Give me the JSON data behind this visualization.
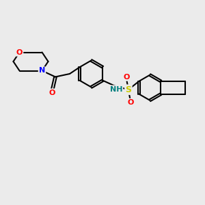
{
  "bg_color": "#ebebeb",
  "bond_color": "#000000",
  "bond_width": 1.5,
  "atom_colors": {
    "O": "#ff0000",
    "N": "#0000ff",
    "S": "#cccc00",
    "NH": "#008080",
    "C": "#000000"
  },
  "font_size_atom": 9,
  "font_size_small": 7
}
